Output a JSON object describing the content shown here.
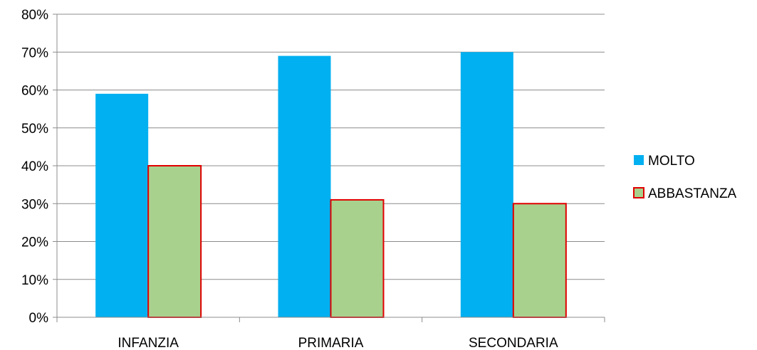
{
  "chart_data": {
    "type": "bar",
    "categories": [
      "INFANZIA",
      "PRIMARIA",
      "SECONDARIA"
    ],
    "series": [
      {
        "name": "MOLTO",
        "values": [
          59,
          69,
          70
        ],
        "fill": "#00B0F0",
        "stroke": "none"
      },
      {
        "name": "ABBASTANZA",
        "values": [
          40,
          31,
          30
        ],
        "fill": "#A9D18E",
        "stroke": "#E00000"
      }
    ],
    "ylim": [
      0,
      80
    ],
    "yticks": [
      0,
      10,
      20,
      30,
      40,
      50,
      60,
      70,
      80
    ],
    "ytick_labels": [
      "0%",
      "10%",
      "20%",
      "30%",
      "40%",
      "50%",
      "60%",
      "70%",
      "80%"
    ],
    "grid": true,
    "legend": "right",
    "title": "",
    "xlabel": "",
    "ylabel": ""
  }
}
